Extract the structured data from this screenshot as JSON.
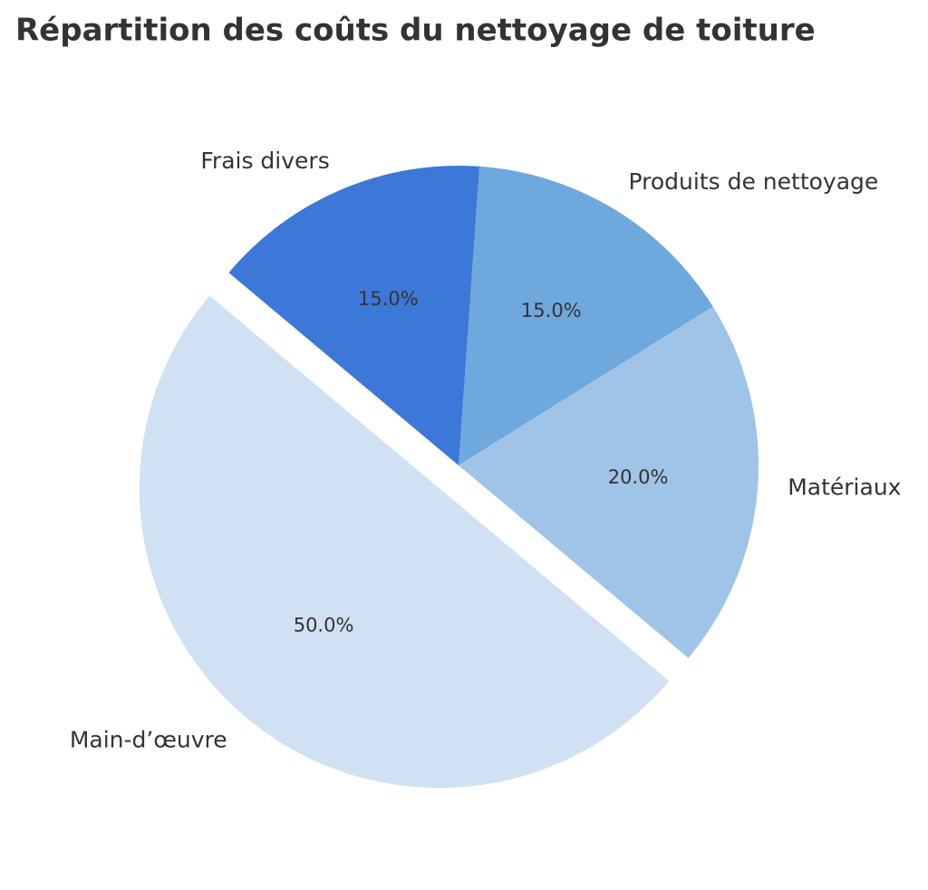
{
  "chart_data": {
    "type": "pie",
    "title": "Répartition des coûts du nettoyage de toiture",
    "categories": [
      "Main-d’œuvre",
      "Matériaux",
      "Produits de nettoyage",
      "Frais divers"
    ],
    "values": [
      50,
      20,
      15,
      15
    ],
    "value_labels": [
      "50.0%",
      "20.0%",
      "15.0%",
      "15.0%"
    ],
    "colors": [
      "#cfe1f3",
      "#9fc4e8",
      "#6fa8dc",
      "#3c78d8"
    ],
    "explode": [
      0.1,
      0,
      0,
      0
    ]
  }
}
